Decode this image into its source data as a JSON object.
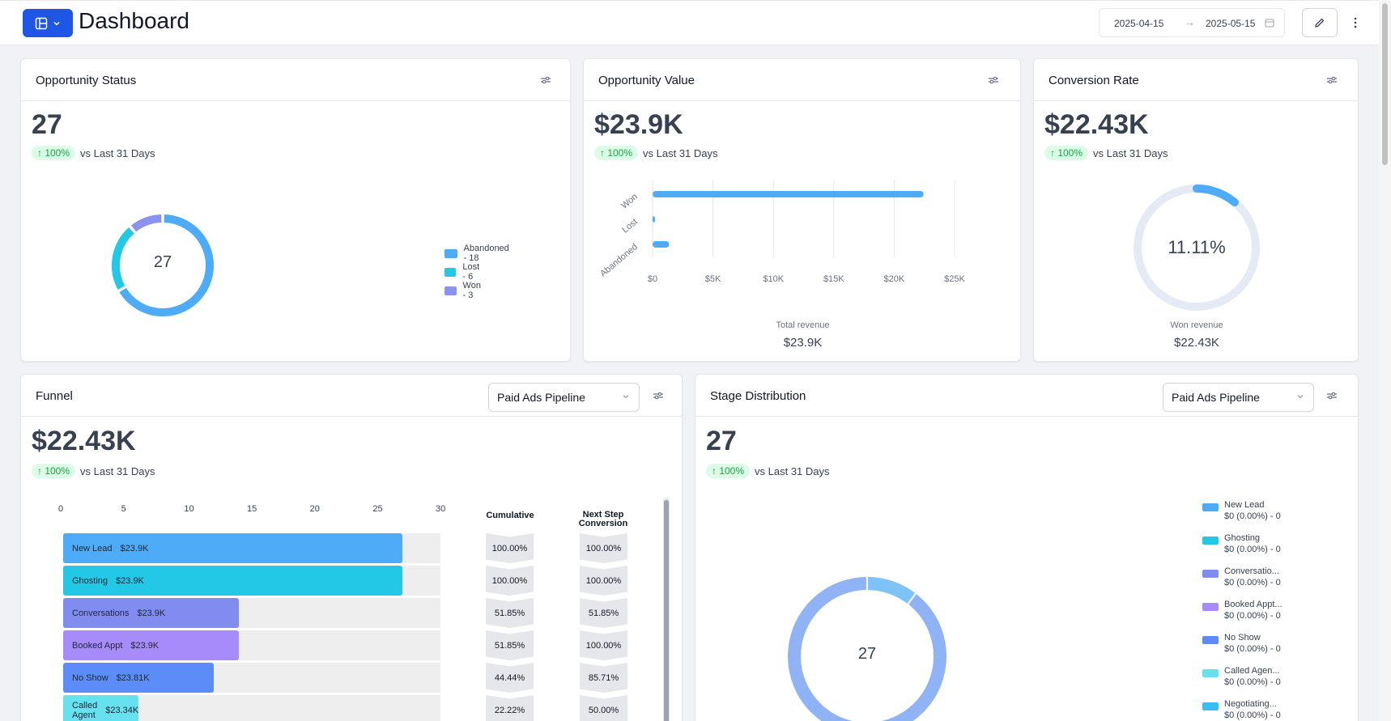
{
  "header": {
    "title": "Dashboard",
    "date_start": "2025-04-15",
    "date_end": "2025-05-15",
    "date_arrow": "→"
  },
  "opportunity_status": {
    "title": "Opportunity Status",
    "value": "27",
    "trend_pct": "↑ 100%",
    "trend_text": "vs Last 31 Days",
    "center_label": "27",
    "legend": [
      {
        "label": "Abandoned - 18",
        "color": "#4dabf7",
        "value": 18
      },
      {
        "label": "Lost - 6",
        "color": "#22c8e6",
        "value": 6
      },
      {
        "label": "Won - 3",
        "color": "#8b93f0",
        "value": 3
      }
    ]
  },
  "opportunity_value": {
    "title": "Opportunity Value",
    "value": "$23.9K",
    "trend_pct": "↑ 100%",
    "trend_text": "vs Last 31 Days",
    "caption": "Total revenue",
    "caption_value": "$23.9K",
    "chart_data": {
      "type": "bar",
      "orientation": "horizontal",
      "categories": [
        "Won",
        "Lost",
        "Abandoned"
      ],
      "values": [
        22430,
        100,
        1370
      ],
      "x_ticks": [
        "$0",
        "$5K",
        "$10K",
        "$15K",
        "$20K",
        "$25K"
      ],
      "xlim": [
        0,
        25000
      ],
      "color": "#4dabf7"
    }
  },
  "conversion_rate": {
    "title": "Conversion Rate",
    "value": "$22.43K",
    "trend_pct": "↑ 100%",
    "trend_text": "vs Last 31 Days",
    "center_label": "11.11%",
    "percent": 11.11,
    "caption": "Won revenue",
    "caption_value": "$22.43K"
  },
  "funnel": {
    "title": "Funnel",
    "pipeline": "Paid Ads Pipeline",
    "value": "$22.43K",
    "trend_pct": "↑ 100%",
    "trend_text": "vs Last 31 Days",
    "col_cumulative": "Cumulative",
    "col_next_1": "Next Step",
    "col_next_2": "Conversion",
    "axis_ticks": [
      "0",
      "5",
      "10",
      "15",
      "20",
      "25",
      "30"
    ],
    "chart_data": {
      "type": "bar",
      "orientation": "horizontal",
      "xlim": [
        0,
        30
      ],
      "rows": [
        {
          "stage": "New Lead",
          "amount": "$23.9K",
          "count": 27,
          "cumulative": "100.00%",
          "next": "100.00%",
          "color": "#4dabf7"
        },
        {
          "stage": "Ghosting",
          "amount": "$23.9K",
          "count": 27,
          "cumulative": "100.00%",
          "next": "100.00%",
          "color": "#22c8e6"
        },
        {
          "stage": "Conversations",
          "amount": "$23.9K",
          "count": 14,
          "cumulative": "51.85%",
          "next": "51.85%",
          "color": "#818cf0"
        },
        {
          "stage": "Booked Appt",
          "amount": "$23.9K",
          "count": 14,
          "cumulative": "51.85%",
          "next": "100.00%",
          "color": "#a78bfa"
        },
        {
          "stage": "No Show",
          "amount": "$23.81K",
          "count": 12,
          "cumulative": "44.44%",
          "next": "85.71%",
          "color": "#5b8cf7"
        },
        {
          "stage": "Called Agent",
          "amount": "$23.34K",
          "count": 6,
          "cumulative": "22.22%",
          "next": "50.00%",
          "color": "#67e0f0"
        }
      ]
    }
  },
  "stage_distribution": {
    "title": "Stage Distribution",
    "pipeline": "Paid Ads Pipeline",
    "value": "27",
    "trend_pct": "↑ 100%",
    "trend_text": "vs Last 31 Days",
    "center_label": "27",
    "legend": [
      {
        "name": "New Lead",
        "detail": "$0 (0.00%) - 0",
        "color": "#4dabf7"
      },
      {
        "name": "Ghosting",
        "detail": "$0 (0.00%) - 0",
        "color": "#22c8e6"
      },
      {
        "name": "Conversatio...",
        "detail": "$0 (0.00%) - 0",
        "color": "#818cf0"
      },
      {
        "name": "Booked Appt...",
        "detail": "$0 (0.00%) - 0",
        "color": "#a78bfa"
      },
      {
        "name": "No Show",
        "detail": "$0 (0.00%) - 0",
        "color": "#5b8cf7"
      },
      {
        "name": "Called Agen...",
        "detail": "$0 (0.00%) - 0",
        "color": "#67e0f0"
      },
      {
        "name": "Negotiating...",
        "detail": "$0 (0.00%) - 0",
        "color": "#38bdf8"
      }
    ]
  }
}
